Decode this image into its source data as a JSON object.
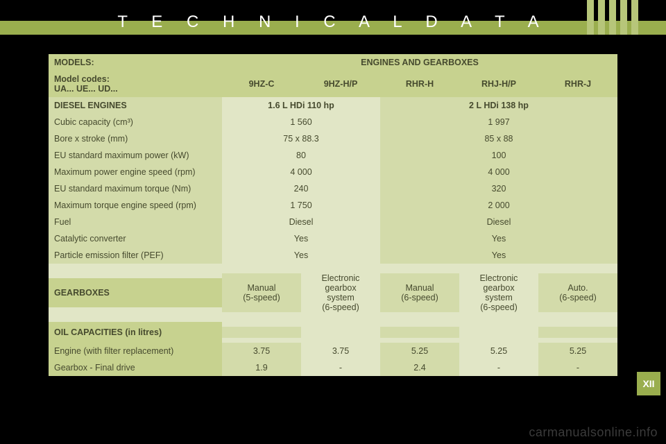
{
  "page": {
    "title": "T E C H N I C A L   D A T A",
    "side_tab": "XII",
    "watermark": "carmanualsonline.info",
    "colors": {
      "bg": "#000000",
      "band": "#9aae4e",
      "stripe": "#b7c67a",
      "table_header": "#c7d28f",
      "table_mid": "#d3dbaa",
      "table_light": "#e1e6c6",
      "text": "#464a2e",
      "title_text": "#ffffff"
    }
  },
  "table": {
    "header1": {
      "models": "MODELS:",
      "right": "ENGINES AND GEARBOXES"
    },
    "header2": {
      "label": "Model codes:\nUA... UE... UD...",
      "c1": "9HZ-C",
      "c2": "9HZ-H/P",
      "c3": "RHR-H",
      "c4": "RHJ-H/P",
      "c5": "RHR-J"
    },
    "diesel_header": {
      "label": "DIESEL ENGINES",
      "eng1": "1.6 L HDi 110 hp",
      "eng2": "2 L HDi 138 hp"
    },
    "spec_rows": [
      {
        "label": "Cubic capacity (cm³)",
        "eng1": "1 560",
        "eng2": "1 997"
      },
      {
        "label": "Bore x stroke (mm)",
        "eng1": "75 x 88.3",
        "eng2": "85 x 88"
      },
      {
        "label": "EU standard maximum power (kW)",
        "eng1": "80",
        "eng2": "100"
      },
      {
        "label": "Maximum power engine speed (rpm)",
        "eng1": "4 000",
        "eng2": "4 000"
      },
      {
        "label": "EU standard maximum torque (Nm)",
        "eng1": "240",
        "eng2": "320"
      },
      {
        "label": "Maximum torque engine speed (rpm)",
        "eng1": "1 750",
        "eng2": "2 000"
      },
      {
        "label": "Fuel",
        "eng1": "Diesel",
        "eng2": "Diesel"
      },
      {
        "label": "Catalytic converter",
        "eng1": "Yes",
        "eng2": "Yes"
      },
      {
        "label": "Particle emission filter (PEF)",
        "eng1": "Yes",
        "eng2": "Yes"
      }
    ],
    "gearboxes": {
      "label": "GEARBOXES",
      "c1": "Manual\n(5-speed)",
      "c2": "Electronic\ngearbox\nsystem\n(6-speed)",
      "c3": "Manual\n(6-speed)",
      "c4": "Electronic\ngearbox\nsystem\n(6-speed)",
      "c5": "Auto.\n(6-speed)"
    },
    "oil_header": "OIL CAPACITIES (in litres)",
    "oil_rows": [
      {
        "label": "Engine (with filter replacement)",
        "c1": "3.75",
        "c2": "3.75",
        "c3": "5.25",
        "c4": "5.25",
        "c5": "5.25"
      },
      {
        "label": "Gearbox - Final drive",
        "c1": "1.9",
        "c2": "-",
        "c3": "2.4",
        "c4": "-",
        "c5": "-"
      }
    ]
  }
}
